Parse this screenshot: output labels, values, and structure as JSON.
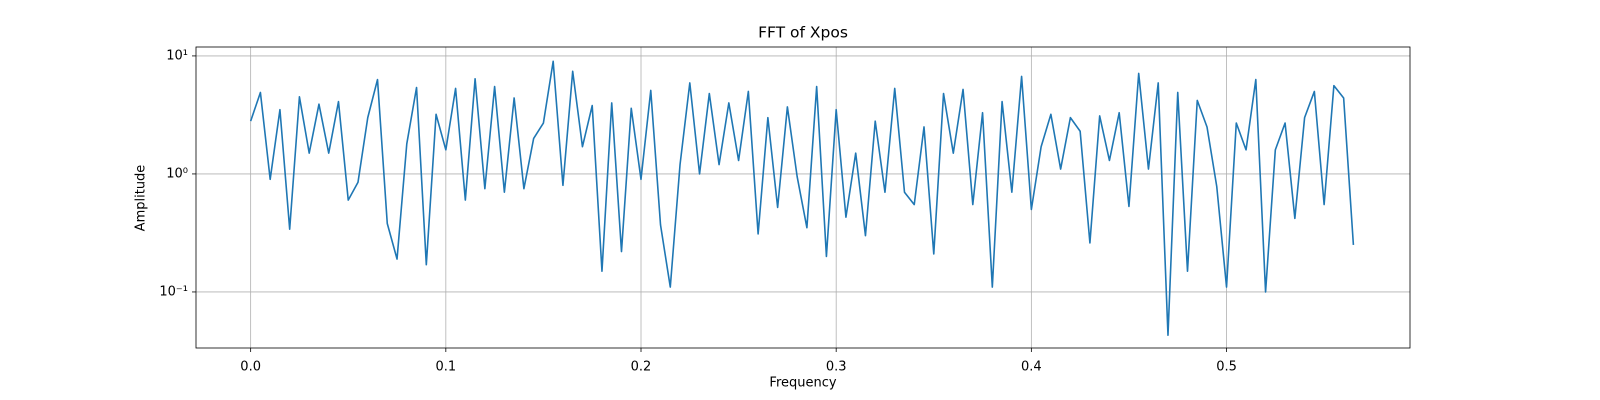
{
  "chart_data": {
    "type": "line",
    "title": "FFT of Xpos",
    "xlabel": "Frequency",
    "ylabel": "Amplitude",
    "yscale": "log",
    "grid": true,
    "xlim": [
      -0.028,
      0.594
    ],
    "ylim": [
      0.0335,
      11.9
    ],
    "xticks": [
      {
        "value": 0,
        "label": "0.0"
      },
      0.1,
      0.2,
      0.3,
      0.4,
      0.5
    ],
    "yticks": [
      {
        "value": 0.1,
        "label": "10⁻¹"
      },
      {
        "value": 1,
        "label": "10⁰"
      },
      {
        "value": 10,
        "label": "10¹"
      }
    ],
    "x": [
      0,
      0.005,
      0.01,
      0.015,
      0.02,
      0.025,
      0.03,
      0.035,
      0.04,
      0.045,
      0.05,
      0.055,
      0.06,
      0.065,
      0.07,
      0.075,
      0.08,
      0.085,
      0.09,
      0.095,
      0.1,
      0.105,
      0.11,
      0.115,
      0.12,
      0.125,
      0.13,
      0.135,
      0.14,
      0.145,
      0.15,
      0.155,
      0.16,
      0.165,
      0.17,
      0.175,
      0.18,
      0.185,
      0.19,
      0.195,
      0.2,
      0.205,
      0.21,
      0.215,
      0.22,
      0.225,
      0.23,
      0.235,
      0.24,
      0.245,
      0.25,
      0.255,
      0.26,
      0.265,
      0.27,
      0.275,
      0.28,
      0.285,
      0.29,
      0.295,
      0.3,
      0.305,
      0.31,
      0.315,
      0.32,
      0.325,
      0.33,
      0.335,
      0.34,
      0.345,
      0.35,
      0.355,
      0.36,
      0.365,
      0.37,
      0.375,
      0.38,
      0.385,
      0.39,
      0.395,
      0.4,
      0.405,
      0.41,
      0.415,
      0.42,
      0.425,
      0.43,
      0.435,
      0.44,
      0.445,
      0.45,
      0.455,
      0.46,
      0.465,
      0.47,
      0.475,
      0.48,
      0.485,
      0.49,
      0.495,
      0.5,
      0.505,
      0.51,
      0.515,
      0.52,
      0.525,
      0.53,
      0.535,
      0.54,
      0.545,
      0.55,
      0.555,
      0.56,
      0.565
    ],
    "series": [
      {
        "color": "#1f77b4",
        "values": [
          2.8,
          4.9,
          0.9,
          3.5,
          0.34,
          4.5,
          1.5,
          3.9,
          1.5,
          4.1,
          0.6,
          0.85,
          3.0,
          6.3,
          0.38,
          0.19,
          1.8,
          5.4,
          0.17,
          3.2,
          1.6,
          5.3,
          0.6,
          6.4,
          0.75,
          5.5,
          0.7,
          4.4,
          0.75,
          2.0,
          2.7,
          9.0,
          0.8,
          7.4,
          1.7,
          3.8,
          0.15,
          4.0,
          0.22,
          3.6,
          0.9,
          5.1,
          0.37,
          0.11,
          1.2,
          5.9,
          1.0,
          4.8,
          1.2,
          4.0,
          1.3,
          5.0,
          0.31,
          3.0,
          0.52,
          3.7,
          0.95,
          0.35,
          5.5,
          0.2,
          3.5,
          0.43,
          1.5,
          0.3,
          2.8,
          0.7,
          5.3,
          0.7,
          0.55,
          2.5,
          0.21,
          4.8,
          1.5,
          5.2,
          0.55,
          3.3,
          0.11,
          4.1,
          0.7,
          6.7,
          0.5,
          1.7,
          3.2,
          1.1,
          3.0,
          2.3,
          0.26,
          3.1,
          1.3,
          3.3,
          0.53,
          7.1,
          1.1,
          5.9,
          0.043,
          4.9,
          0.15,
          4.2,
          2.5,
          0.78,
          0.11,
          2.7,
          1.6,
          6.3,
          0.1,
          1.6,
          2.7,
          0.42,
          3.0,
          5.0,
          0.55,
          5.6,
          4.4,
          0.25
        ]
      }
    ]
  }
}
